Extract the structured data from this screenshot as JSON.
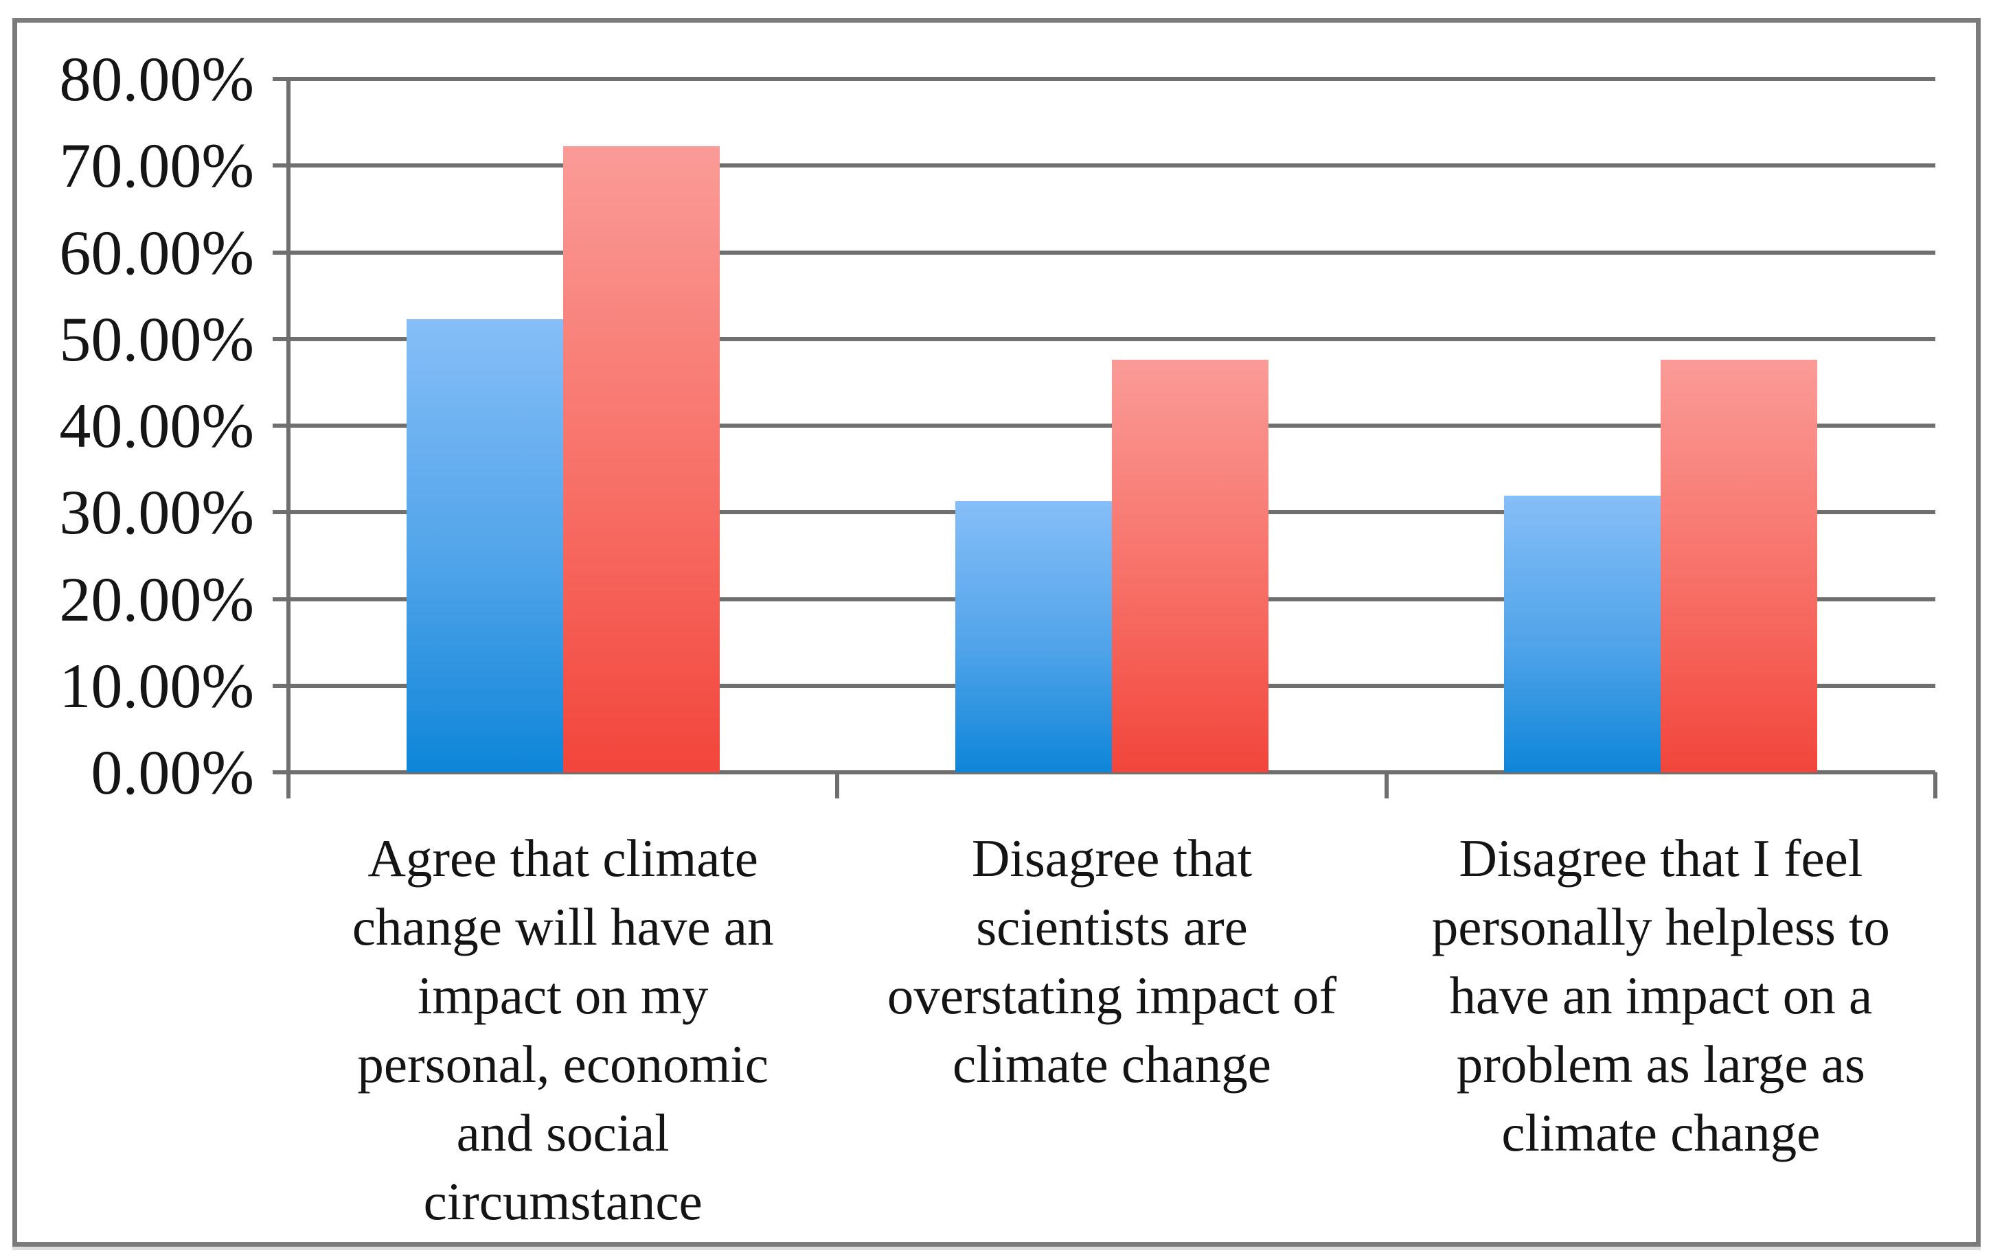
{
  "figure": {
    "background": "#ffffff",
    "frame_border_color": "#7b7b7b",
    "gridline_color": "#6f6f6f",
    "axis_color": "#6f6f6f",
    "text_color": "#151515"
  },
  "chart_data": {
    "type": "bar",
    "title": "",
    "xlabel": "",
    "ylabel": "",
    "ylim": [
      0,
      80
    ],
    "ytick_step": 10,
    "ytick_labels": [
      "80.00%",
      "70.00%",
      "60.00%",
      "50.00%",
      "40.00%",
      "30.00%",
      "20.00%",
      "10.00%",
      "0.00%"
    ],
    "grid": true,
    "legend": "none",
    "categories": [
      "Agree that climate change will have an impact on my personal, economic and social circumstance",
      "Disagree that scientists are overstating impact of climate change",
      "Disagree that I feel personally helpless to have an impact on a problem as large as climate change"
    ],
    "category_lines": [
      [
        "Agree that climate",
        "change will have an",
        "impact on my",
        "personal, economic",
        "and social",
        "circumstance"
      ],
      [
        "Disagree that",
        "scientists are",
        "overstating impact of",
        "climate change"
      ],
      [
        "Disagree that I feel",
        "personally helpless to",
        "have an impact on a",
        "problem as large as",
        "climate change"
      ]
    ],
    "series": [
      {
        "name": "blue",
        "color_top": "#86BEF8",
        "color_bottom": "#0E85D8",
        "values": [
          52.3,
          31.3,
          31.9
        ]
      },
      {
        "name": "red",
        "color_top": "#FA9B97",
        "color_bottom": "#F2453B",
        "values": [
          72.2,
          47.6,
          47.6
        ]
      }
    ]
  }
}
